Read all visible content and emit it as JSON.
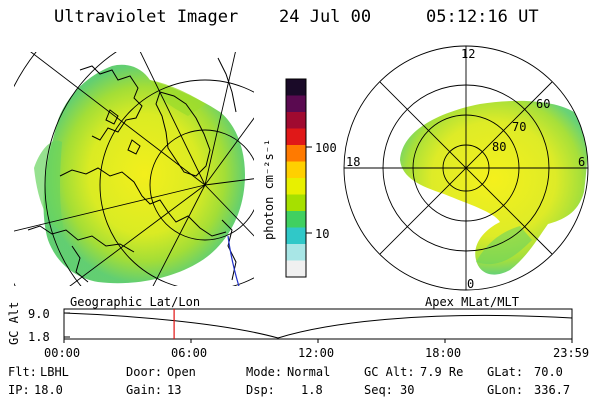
{
  "header": {
    "instrument": "Ultraviolet Imager",
    "date": "24 Jul 00",
    "time": "05:12:16 UT"
  },
  "colorbar": {
    "unit_label": "photon cm⁻²s⁻¹",
    "ticks": [
      "100",
      "10"
    ],
    "colors": [
      "#1a0a28",
      "#5a0a50",
      "#a00a30",
      "#e01818",
      "#ff7a00",
      "#ffd000",
      "#e8f000",
      "#a6e000",
      "#40d060",
      "#30c8c8",
      "#a8e6e6",
      "#f0f0f0"
    ]
  },
  "left_map": {
    "label": "Geographic Lat/Lon"
  },
  "right_map": {
    "label": "Apex MLat/MLT",
    "mlt_labels": [
      "12",
      "18",
      "6",
      "0"
    ],
    "lat_labels": [
      "60",
      "70",
      "80"
    ]
  },
  "altitude_plot": {
    "ylabel": "GC Alt",
    "yticks": [
      "9.0",
      "1.8"
    ],
    "xticks": [
      "00:00",
      "06:00",
      "12:00",
      "18:00",
      "23:59"
    ],
    "current_marker_hour": 5.2
  },
  "info": {
    "row1": [
      {
        "label": "Flt:",
        "value": "LBHL"
      },
      {
        "label": "Door:",
        "value": "Open"
      },
      {
        "label": "Mode:",
        "value": "Normal"
      },
      {
        "label": "GC Alt:",
        "value": "7.9 Re"
      },
      {
        "label": "GLat:",
        "value": "70.0"
      }
    ],
    "row2": [
      {
        "label": "IP:",
        "value": "18.0"
      },
      {
        "label": "Gain:",
        "value": "13"
      },
      {
        "label": "Dsp:",
        "value": "1.8"
      },
      {
        "label": "Seq:",
        "value": "30"
      },
      {
        "label": "GLon:",
        "value": "336.7"
      }
    ]
  }
}
